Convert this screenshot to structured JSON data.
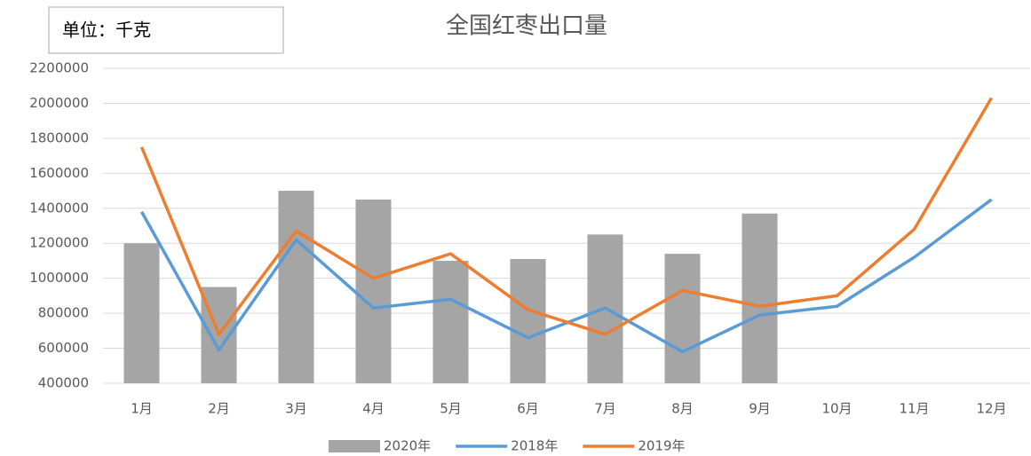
{
  "chart_data": {
    "type": "combo",
    "title": "全国红枣出口量",
    "unit_label": "单位：千克",
    "categories": [
      "1月",
      "2月",
      "3月",
      "4月",
      "5月",
      "6月",
      "7月",
      "8月",
      "9月",
      "10月",
      "11月",
      "12月"
    ],
    "series": [
      {
        "name": "2020年",
        "type": "bar",
        "color": "#a5a5a5",
        "values": [
          1200000,
          950000,
          1500000,
          1450000,
          1100000,
          1110000,
          1250000,
          1140000,
          1370000,
          null,
          null,
          null
        ]
      },
      {
        "name": "2018年",
        "type": "line",
        "color": "#5b9bd5",
        "values": [
          1380000,
          590000,
          1220000,
          830000,
          880000,
          660000,
          830000,
          580000,
          790000,
          840000,
          1120000,
          1450000
        ]
      },
      {
        "name": "2019年",
        "type": "line",
        "color": "#ed7d31",
        "values": [
          1750000,
          680000,
          1270000,
          1000000,
          1140000,
          820000,
          680000,
          930000,
          840000,
          900000,
          1280000,
          2030000
        ]
      }
    ],
    "ylim": [
      400000,
      2200000
    ],
    "yticks": [
      400000,
      600000,
      800000,
      1000000,
      1200000,
      1400000,
      1600000,
      1800000,
      2000000,
      2200000
    ],
    "grid": true,
    "legend": "bottom"
  }
}
